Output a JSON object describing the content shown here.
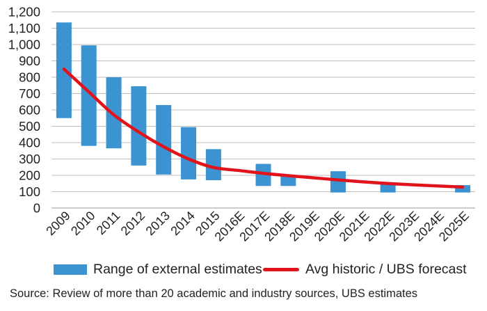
{
  "chart_data": {
    "type": "bar",
    "categories": [
      "2009",
      "2010",
      "2011",
      "2012",
      "2013",
      "2014",
      "2015",
      "2016E",
      "2017E",
      "2018E",
      "2019E",
      "2020E",
      "2021E",
      "2022E",
      "2023E",
      "2024E",
      "2025E"
    ],
    "y_ticks": [
      "0",
      "100",
      "200",
      "300",
      "400",
      "500",
      "600",
      "700",
      "800",
      "900",
      "1,000",
      "1,100",
      "1,200"
    ],
    "ylim": [
      0,
      1200
    ],
    "grid": true,
    "series": [
      {
        "name": "Range of external estimates",
        "kind": "floating-bar",
        "color": "#3b93d1",
        "ranges": [
          [
            550,
            1135
          ],
          [
            380,
            995
          ],
          [
            365,
            800
          ],
          [
            260,
            745
          ],
          [
            205,
            630
          ],
          [
            175,
            495
          ],
          [
            170,
            360
          ],
          null,
          [
            135,
            270
          ],
          [
            135,
            200
          ],
          null,
          [
            95,
            225
          ],
          null,
          [
            95,
            145
          ],
          null,
          null,
          [
            95,
            140
          ]
        ]
      },
      {
        "name": "Avg historic / UBS forecast",
        "kind": "line",
        "color": "#e1141b",
        "values": [
          850,
          710,
          570,
          465,
          375,
          300,
          248,
          230,
          212,
          198,
          185,
          172,
          160,
          150,
          142,
          135,
          128
        ]
      }
    ],
    "legend": "bottom",
    "source": "Source: Review of more than 20 academic and industry sources, UBS estimates"
  }
}
